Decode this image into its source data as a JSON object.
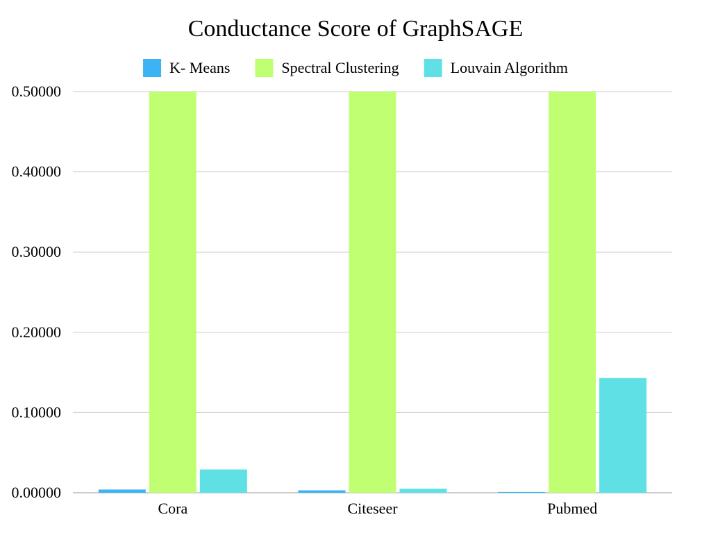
{
  "chart_data": {
    "type": "bar",
    "title": "Conductance Score of GraphSAGE",
    "xlabel": "",
    "ylabel": "",
    "categories": [
      "Cora",
      "Citeseer",
      "Pubmed"
    ],
    "series": [
      {
        "name": "K- Means",
        "color": "#3bb3f5",
        "values": [
          0.004,
          0.003,
          0.001
        ]
      },
      {
        "name": "Spectral Clustering",
        "color": "#c1ff72",
        "values": [
          0.5,
          0.5,
          0.5
        ]
      },
      {
        "name": "Louvain Algorithm",
        "color": "#5ee0e5",
        "values": [
          0.029,
          0.005,
          0.143
        ]
      }
    ],
    "ylim": [
      0,
      0.5
    ],
    "yticks": [
      "0.00000",
      "0.10000",
      "0.20000",
      "0.30000",
      "0.40000",
      "0.50000"
    ],
    "grid": true,
    "legend_position": "top"
  }
}
